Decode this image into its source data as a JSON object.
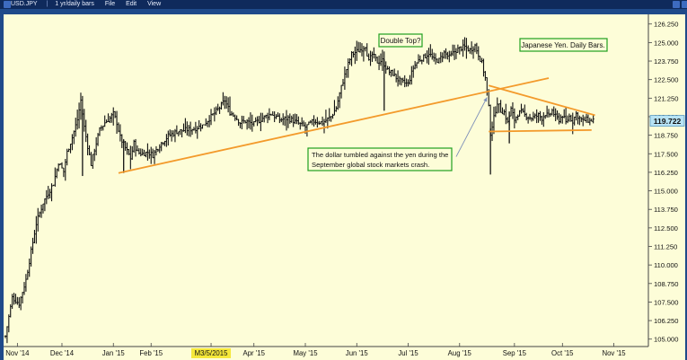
{
  "toolbar": {
    "symbol": "USD.JPY",
    "period": "1 yr/daily bars",
    "menu_file": "File",
    "menu_edit": "Edit",
    "menu_view": "View"
  },
  "colors": {
    "background": "#fdfdd8",
    "bars": "#111111",
    "trendline": "#f39a2b",
    "annotation_border": "#1fa01f",
    "last_price_badge": "#b7e3f4",
    "frame": "#1f4a8a"
  },
  "annotations": {
    "double_top": "Double Top?",
    "title_box": "Japanese Yen. Daily Bars.",
    "crash_note_line1": "The dollar tumbled against the yen during the",
    "crash_note_line2": "September global stock markets crash."
  },
  "chart_data": {
    "type": "ohlc",
    "ylim": [
      104.5,
      126.9
    ],
    "grid": false,
    "y_ticks": [
      "126.250",
      "125.000",
      "123.750",
      "122.500",
      "121.250",
      "120.000",
      "118.750",
      "117.500",
      "116.250",
      "115.000",
      "113.750",
      "112.500",
      "111.250",
      "110.000",
      "108.750",
      "107.500",
      "106.250",
      "105.000"
    ],
    "y_tick_values": [
      126.25,
      125.0,
      123.75,
      122.5,
      121.25,
      120.0,
      118.75,
      117.5,
      116.25,
      115.0,
      113.75,
      112.5,
      111.25,
      110.0,
      108.75,
      107.5,
      106.25,
      105.0
    ],
    "last_price": 119.722,
    "last_price_label": "119.722",
    "x_ticks": [
      "Nov '14",
      "Dec '14",
      "Jan '15",
      "Feb '15",
      "M3/5/2015",
      "Apr '15",
      "May '15",
      "Jun '15",
      "Jul '15",
      "Aug '15",
      "Sep '15",
      "Oct '15",
      "Nov '15"
    ],
    "x_ticks_highlight": "M3/5/2015",
    "x_tick_days": [
      7,
      33,
      63,
      85,
      120,
      145,
      175,
      205,
      235,
      265,
      297,
      325,
      355
    ],
    "day_range": [
      0,
      372
    ],
    "price_path": [
      [
        0,
        105.2
      ],
      [
        4,
        107.8
      ],
      [
        8,
        107.4
      ],
      [
        12,
        109.0
      ],
      [
        18,
        112.8
      ],
      [
        22,
        114.2
      ],
      [
        28,
        115.5
      ],
      [
        31,
        116.9
      ],
      [
        34,
        116.3
      ],
      [
        36,
        117.6
      ],
      [
        39,
        118.6
      ],
      [
        42,
        119.8
      ],
      [
        44,
        121.1
      ],
      [
        46,
        119.3
      ],
      [
        48,
        118.0
      ],
      [
        50,
        116.8
      ],
      [
        52,
        117.8
      ],
      [
        55,
        119.1
      ],
      [
        58,
        119.6
      ],
      [
        61,
        119.9
      ],
      [
        63,
        120.2
      ],
      [
        65,
        119.6
      ],
      [
        67,
        118.6
      ],
      [
        70,
        117.9
      ],
      [
        73,
        117.2
      ],
      [
        75,
        118.2
      ],
      [
        77,
        117.6
      ],
      [
        80,
        117.5
      ],
      [
        83,
        117.6
      ],
      [
        86,
        117.4
      ],
      [
        90,
        118.1
      ],
      [
        95,
        118.7
      ],
      [
        100,
        119.0
      ],
      [
        105,
        119.1
      ],
      [
        110,
        119.2
      ],
      [
        115,
        119.4
      ],
      [
        120,
        120.0
      ],
      [
        125,
        120.6
      ],
      [
        128,
        121.1
      ],
      [
        131,
        120.3
      ],
      [
        134,
        120.0
      ],
      [
        137,
        119.6
      ],
      [
        140,
        119.7
      ],
      [
        145,
        119.5
      ],
      [
        150,
        119.9
      ],
      [
        155,
        120.2
      ],
      [
        160,
        119.8
      ],
      [
        165,
        119.9
      ],
      [
        170,
        119.6
      ],
      [
        175,
        119.3
      ],
      [
        180,
        119.7
      ],
      [
        185,
        119.6
      ],
      [
        190,
        120.0
      ],
      [
        193,
        120.6
      ],
      [
        196,
        122.0
      ],
      [
        199,
        123.2
      ],
      [
        202,
        124.2
      ],
      [
        205,
        124.4
      ],
      [
        208,
        124.6
      ],
      [
        210,
        124.8
      ],
      [
        212,
        123.7
      ],
      [
        214,
        124.2
      ],
      [
        217,
        123.7
      ],
      [
        220,
        123.8
      ],
      [
        223,
        123.1
      ],
      [
        226,
        122.9
      ],
      [
        229,
        122.5
      ],
      [
        232,
        122.3
      ],
      [
        235,
        122.2
      ],
      [
        238,
        123.3
      ],
      [
        241,
        123.8
      ],
      [
        244,
        124.0
      ],
      [
        247,
        124.3
      ],
      [
        250,
        123.8
      ],
      [
        253,
        123.8
      ],
      [
        256,
        124.3
      ],
      [
        259,
        124.0
      ],
      [
        262,
        124.4
      ],
      [
        265,
        124.6
      ],
      [
        268,
        124.7
      ],
      [
        271,
        124.5
      ],
      [
        274,
        124.8
      ],
      [
        276,
        124.2
      ],
      [
        278,
        123.6
      ],
      [
        280,
        122.6
      ],
      [
        282,
        120.6
      ],
      [
        283,
        118.9
      ],
      [
        285,
        119.9
      ],
      [
        287,
        121.0
      ],
      [
        289,
        120.4
      ],
      [
        291,
        120.3
      ],
      [
        293,
        119.6
      ],
      [
        295,
        120.5
      ],
      [
        297,
        119.8
      ],
      [
        299,
        120.2
      ],
      [
        301,
        120.3
      ],
      [
        303,
        120.1
      ],
      [
        305,
        120.0
      ],
      [
        307,
        119.9
      ],
      [
        309,
        120.0
      ],
      [
        311,
        120.1
      ],
      [
        313,
        119.9
      ],
      [
        315,
        120.2
      ],
      [
        317,
        120.0
      ],
      [
        319,
        120.4
      ],
      [
        321,
        120.0
      ],
      [
        323,
        119.8
      ],
      [
        325,
        120.1
      ],
      [
        327,
        119.6
      ],
      [
        329,
        120.0
      ],
      [
        331,
        119.7
      ],
      [
        333,
        120.2
      ],
      [
        335,
        119.9
      ],
      [
        337,
        119.7
      ],
      [
        339,
        119.8
      ],
      [
        341,
        119.7
      ],
      [
        343,
        119.8
      ]
    ],
    "spikes": [
      {
        "day": 45,
        "low": 116.0
      },
      {
        "day": 69,
        "low": 116.2
      },
      {
        "day": 283,
        "low": 116.1
      },
      {
        "day": 294,
        "low": 118.2
      },
      {
        "day": 221,
        "low": 120.4
      }
    ],
    "trendlines": [
      {
        "from": [
          66,
          116.2
        ],
        "to": [
          317,
          122.6
        ]
      },
      {
        "from": [
          282,
          122.1
        ],
        "to": [
          344,
          120.1
        ]
      },
      {
        "from": [
          282,
          119.0
        ],
        "to": [
          342,
          119.1
        ]
      }
    ],
    "arrow": {
      "from": [
        263,
        117.3
      ],
      "to": [
        281,
        121.3
      ]
    }
  }
}
